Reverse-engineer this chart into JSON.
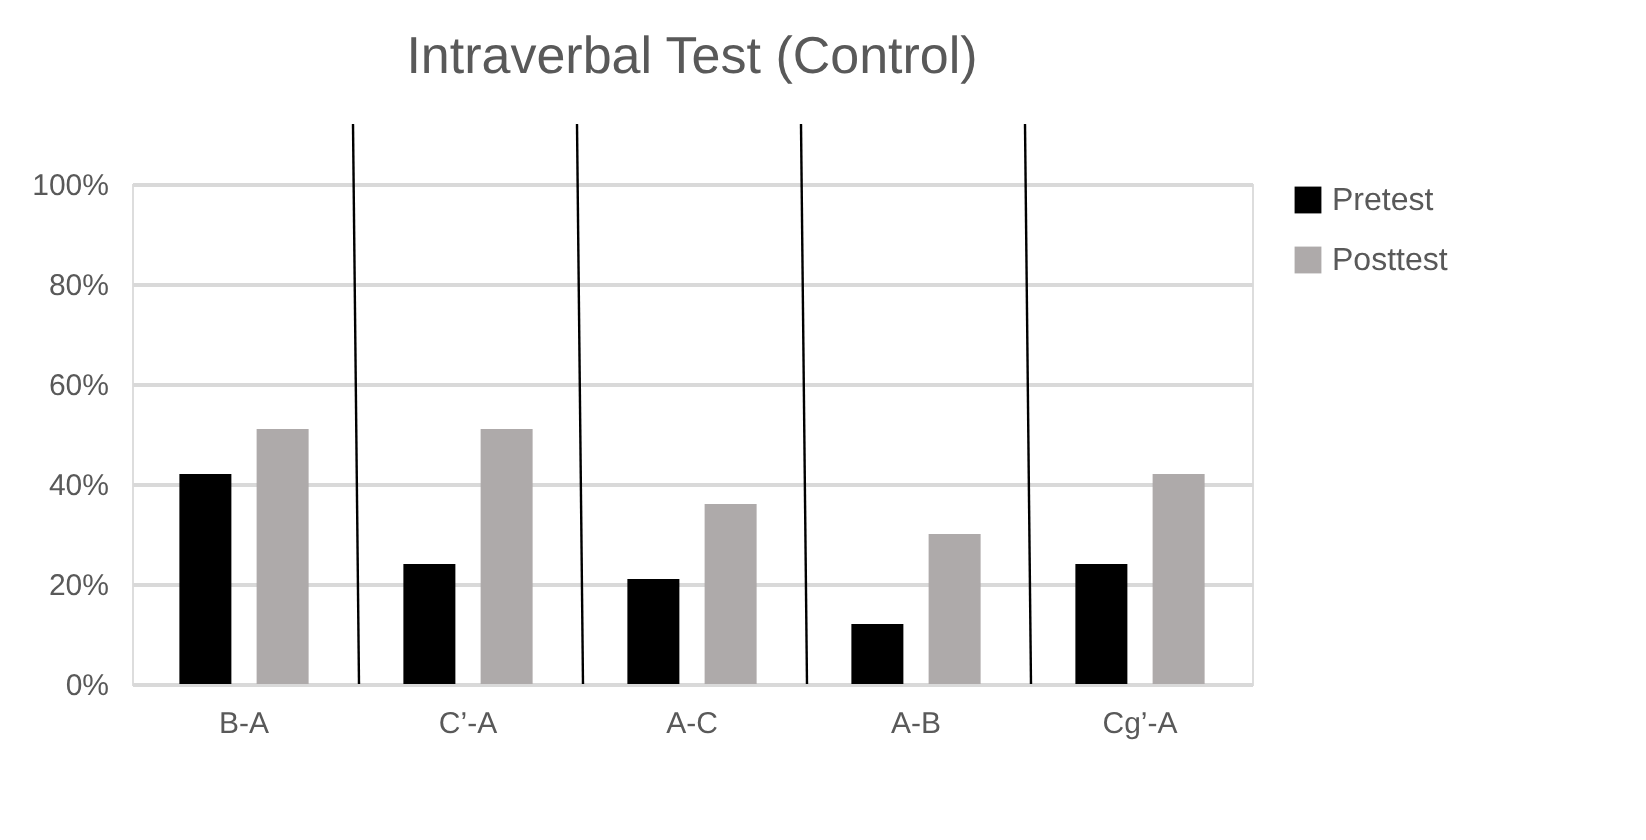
{
  "chart_data": {
    "type": "bar",
    "title": "Intraverbal Test (Control)",
    "categories": [
      "B-A",
      "C’-A",
      "A-C",
      "A-B",
      "Cg’-A"
    ],
    "series": [
      {
        "name": "Pretest",
        "color": "#000000",
        "values": [
          42,
          24,
          21,
          12,
          24
        ]
      },
      {
        "name": "Posttest",
        "color": "#aeaaaa",
        "values": [
          51,
          51,
          36,
          30,
          42
        ]
      }
    ],
    "ylim": [
      0,
      100
    ],
    "yticks": [
      {
        "value": 0,
        "label": "0%"
      },
      {
        "value": 20,
        "label": "20%"
      },
      {
        "value": 40,
        "label": "40%"
      },
      {
        "value": 60,
        "label": "60%"
      },
      {
        "value": 80,
        "label": "80%"
      },
      {
        "value": 100,
        "label": "100%"
      }
    ],
    "grid": "y",
    "legend": "right"
  }
}
